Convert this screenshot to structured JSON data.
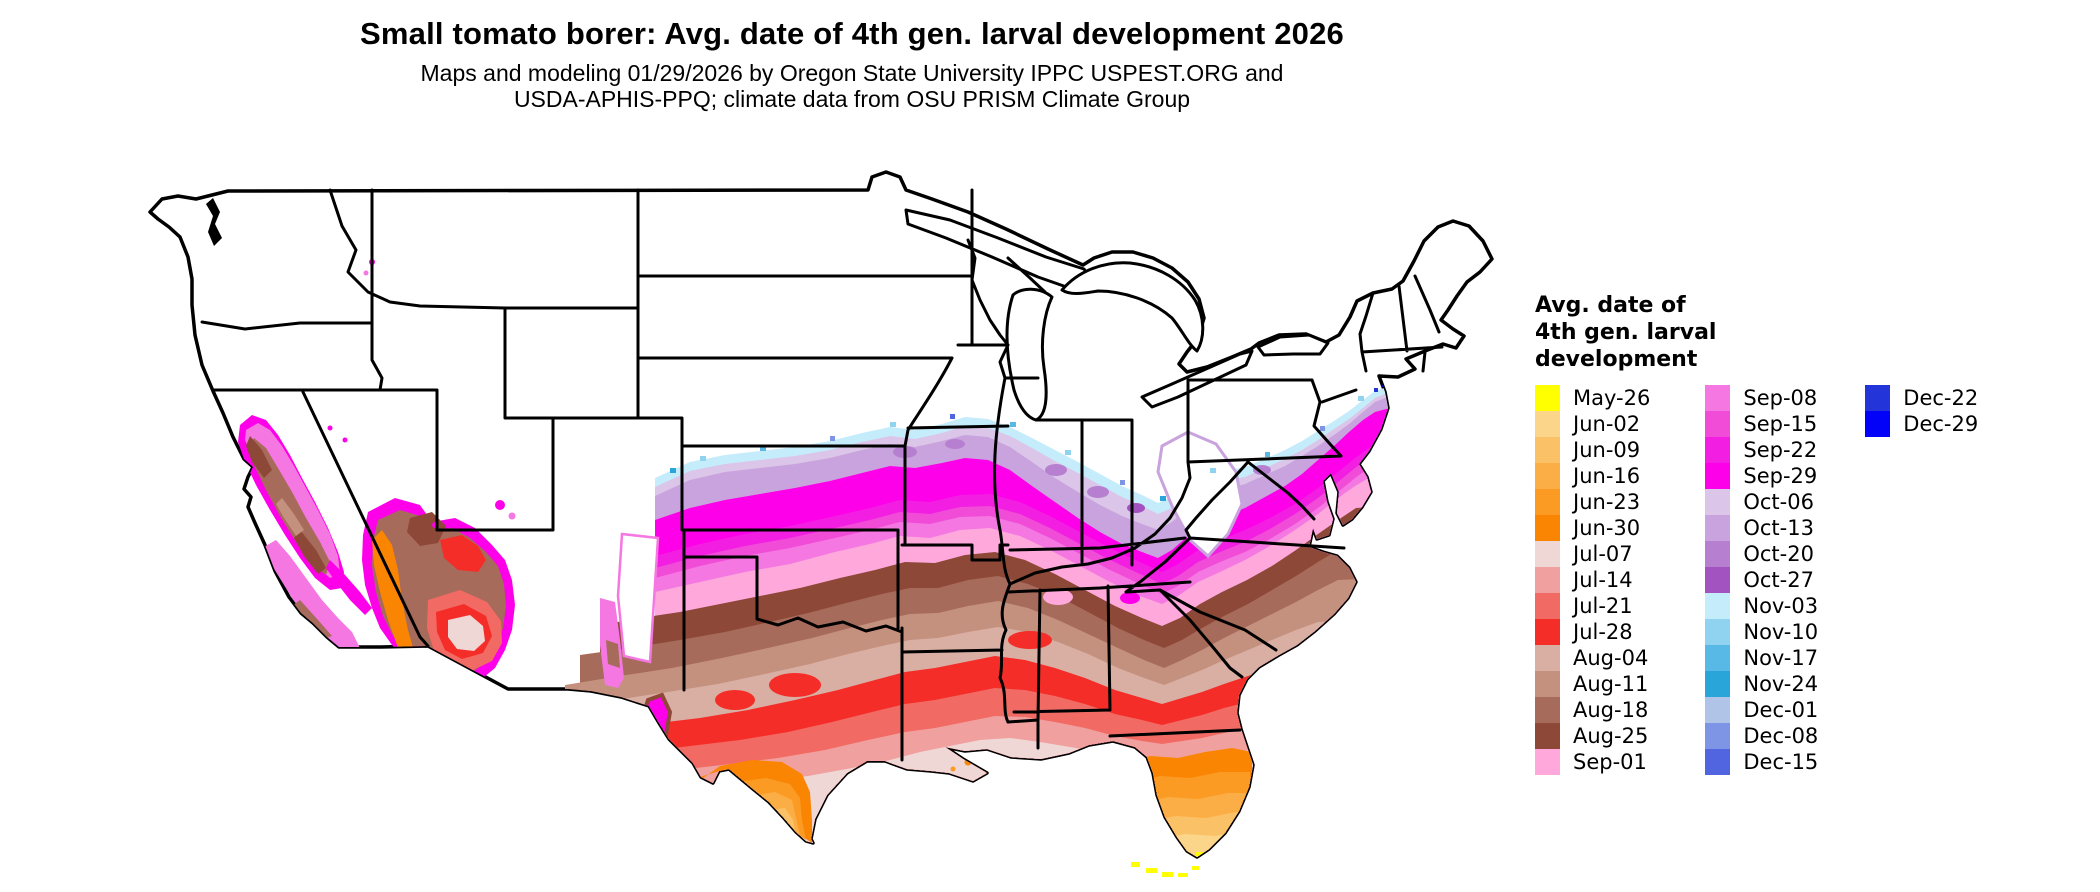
{
  "title": "Small tomato borer: Avg. date of 4th gen. larval development 2026",
  "subtitle_line1": "Maps and modeling 01/29/2026 by Oregon State University IPPC USPEST.ORG and",
  "subtitle_line2": "USDA-APHIS-PPQ; climate data from OSU PRISM Climate Group",
  "legend": {
    "title_lines": [
      "Avg. date of",
      "4th gen. larval",
      "development"
    ],
    "columns": [
      {
        "entries": [
          {
            "label": "May-26",
            "color": "#FFFF00"
          },
          {
            "label": "Jun-02",
            "color": "#FBD58A"
          },
          {
            "label": "Jun-09",
            "color": "#FBC167"
          },
          {
            "label": "Jun-16",
            "color": "#FBAE45"
          },
          {
            "label": "Jun-23",
            "color": "#FB9B24"
          },
          {
            "label": "Jun-30",
            "color": "#FA8502"
          },
          {
            "label": "Jul-07",
            "color": "#EFD7D5"
          },
          {
            "label": "Jul-14",
            "color": "#F0A09E"
          },
          {
            "label": "Jul-21",
            "color": "#F26A64"
          },
          {
            "label": "Jul-28",
            "color": "#F52D28"
          },
          {
            "label": "Aug-04",
            "color": "#D9AFA4"
          },
          {
            "label": "Aug-11",
            "color": "#C5917F"
          },
          {
            "label": "Aug-18",
            "color": "#A76B5B"
          },
          {
            "label": "Aug-25",
            "color": "#8D4837"
          },
          {
            "label": "Sep-01",
            "color": "#FFA8DC"
          }
        ]
      },
      {
        "entries": [
          {
            "label": "Sep-08",
            "color": "#F577E2"
          },
          {
            "label": "Sep-15",
            "color": "#F04CD8"
          },
          {
            "label": "Sep-22",
            "color": "#F21EE2"
          },
          {
            "label": "Sep-29",
            "color": "#FD00E9"
          },
          {
            "label": "Oct-06",
            "color": "#DBC5E8"
          },
          {
            "label": "Oct-13",
            "color": "#C9A3DD"
          },
          {
            "label": "Oct-20",
            "color": "#B67FD0"
          },
          {
            "label": "Oct-27",
            "color": "#A253BF"
          },
          {
            "label": "Nov-03",
            "color": "#C5ECFA"
          },
          {
            "label": "Nov-10",
            "color": "#90D3F0"
          },
          {
            "label": "Nov-17",
            "color": "#58B8E6"
          },
          {
            "label": "Nov-24",
            "color": "#2AA5DA"
          },
          {
            "label": "Dec-01",
            "color": "#B0C4E8"
          },
          {
            "label": "Dec-08",
            "color": "#7E95E5"
          },
          {
            "label": "Dec-15",
            "color": "#5265E0"
          }
        ]
      },
      {
        "entries": [
          {
            "label": "Dec-22",
            "color": "#2335D8"
          },
          {
            "label": "Dec-29",
            "color": "#0202F8"
          }
        ]
      }
    ]
  },
  "map": {
    "region": "Contiguous United States",
    "kind": "choropleth of average date of 4th generation larval development"
  }
}
